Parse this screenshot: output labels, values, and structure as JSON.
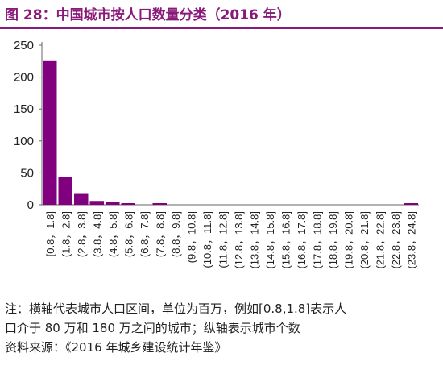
{
  "title": "图 28：中国城市按人口数量分类（2016 年）",
  "chart_data": {
    "type": "bar",
    "categories": [
      "[0.8，1.8]",
      "(1.8，2.8]",
      "(2.8，3.8]",
      "(3.8，4.8]",
      "(4.8，5.8]",
      "(5.8，6.8]",
      "(6.8，7.8]",
      "(7.8，8.8]",
      "(8.8，9.8]",
      "(9.8，10.8]",
      "(10.8，11.8]",
      "(11.8，12.8]",
      "(12.8，13.8]",
      "(13.8，14.8]",
      "(14.8，15.8]",
      "(15.8，16.8]",
      "(16.8，17.8]",
      "(17.8，18.8]",
      "(18.8，19.8]",
      "(19.8，20.8]",
      "(20.8，21.8]",
      "(21.8，22.8]",
      "(22.8，23.8]",
      "(23.8，24.8]"
    ],
    "values": [
      225,
      44,
      17,
      6,
      4,
      1,
      0,
      1,
      0,
      0,
      0,
      0,
      0,
      0,
      0,
      0,
      0,
      0,
      0,
      0,
      0,
      0,
      0,
      1
    ],
    "ylim": [
      0,
      250
    ],
    "yticks": [
      0,
      50,
      100,
      150,
      200,
      250
    ],
    "xlabel": "",
    "ylabel": "",
    "grid": false,
    "bar_color": "#800080"
  },
  "notes": [
    "注：横轴代表城市人口区间，单位为百万，例如[0.8,1.8]表示人",
    "口介于 80 万和 180 万之间的城市；纵轴表示城市个数",
    "资料来源：《2016 年城乡建设统计年鉴》"
  ]
}
